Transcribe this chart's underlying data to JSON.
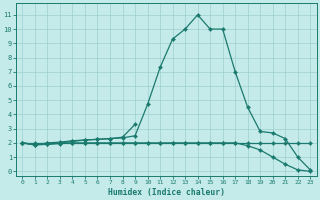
{
  "xlabel": "Humidex (Indice chaleur)",
  "xlim": [
    -0.5,
    23.5
  ],
  "ylim": [
    -0.3,
    11.8
  ],
  "xticks": [
    0,
    1,
    2,
    3,
    4,
    5,
    6,
    7,
    8,
    9,
    10,
    11,
    12,
    13,
    14,
    15,
    16,
    17,
    18,
    19,
    20,
    21,
    22,
    23
  ],
  "yticks": [
    0,
    1,
    2,
    3,
    4,
    5,
    6,
    7,
    8,
    9,
    10,
    11
  ],
  "bg_color": "#c5eaea",
  "grid_color": "#9ecece",
  "line_color": "#1a7a6e",
  "line_width": 0.9,
  "marker_size": 2.2,
  "lines": [
    {
      "x": [
        0,
        1,
        2,
        3,
        4,
        5,
        6,
        7,
        8,
        9,
        10,
        11,
        12,
        13,
        14,
        15,
        16,
        17,
        18,
        19,
        20,
        21,
        22,
        23
      ],
      "y": [
        2,
        2,
        2,
        2,
        2,
        2,
        2,
        2,
        2,
        2,
        2,
        2,
        2,
        2,
        2,
        2,
        2,
        2,
        2,
        2,
        2,
        2,
        2,
        2
      ]
    },
    {
      "x": [
        0,
        1,
        2,
        3,
        4,
        5,
        6,
        7,
        8,
        9,
        10,
        11,
        12,
        13,
        14,
        15,
        16,
        17,
        18,
        19,
        20,
        21,
        22,
        23
      ],
      "y": [
        2,
        1.85,
        2.0,
        2.05,
        2.15,
        2.2,
        2.25,
        2.3,
        2.35,
        2.5,
        4.7,
        7.3,
        9.3,
        10.0,
        11.0,
        10.0,
        10.0,
        7.0,
        4.5,
        2.8,
        2.7,
        2.3,
        1.0,
        0.1
      ]
    },
    {
      "x": [
        0,
        1,
        2,
        3,
        4,
        5,
        6,
        7,
        8,
        9
      ],
      "y": [
        2,
        1.85,
        1.9,
        2.0,
        2.1,
        2.2,
        2.25,
        2.3,
        2.4,
        3.3
      ]
    },
    {
      "x": [
        0,
        1,
        2,
        3,
        4,
        5,
        6,
        7,
        8,
        9,
        10,
        11,
        12,
        13,
        14,
        15,
        16,
        17,
        18,
        19,
        20,
        21,
        22,
        23
      ],
      "y": [
        2,
        1.9,
        1.9,
        1.95,
        2.0,
        2.0,
        2.0,
        2.0,
        2.0,
        2.0,
        2.0,
        2.0,
        2.0,
        2.0,
        2.0,
        2.0,
        2.0,
        2.0,
        1.8,
        1.5,
        1.0,
        0.5,
        0.1,
        0.0
      ]
    }
  ]
}
